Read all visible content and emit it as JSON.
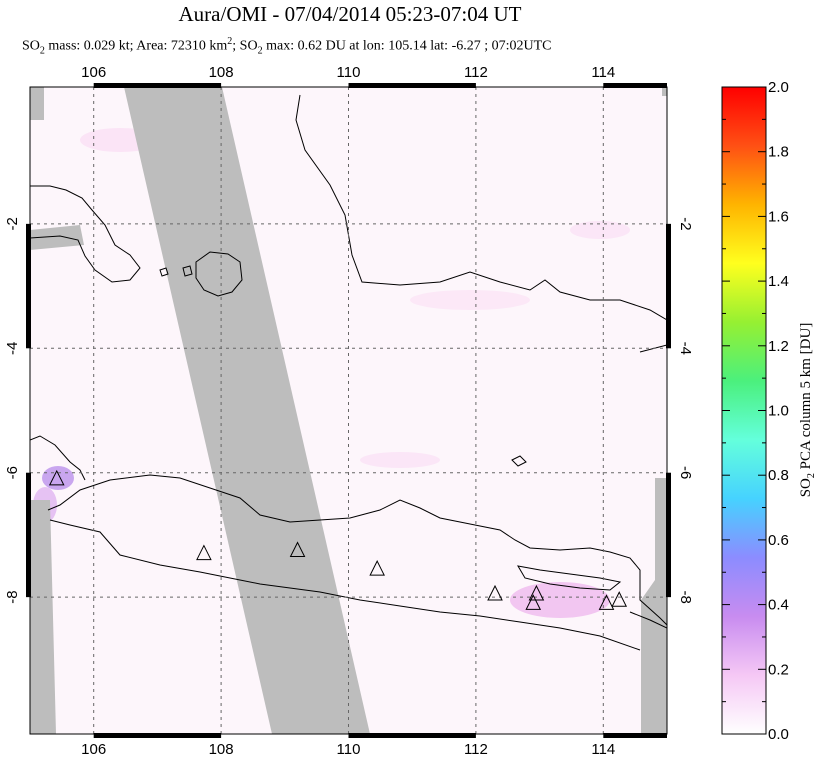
{
  "title": "Aura/OMI - 07/04/2014 05:23-07:04 UT",
  "subtitle": {
    "prefix": "SO",
    "prefix_sub": "2",
    "mass_text": " mass: 0.029 kt; Area: 72310 km",
    "area_sup": "2",
    "sep": "; SO",
    "sep_sub": "2",
    "max_text": " max: 0.62 DU at lon: 105.14 lat: -6.27 ; 07:02UTC"
  },
  "map": {
    "lon_range": [
      105,
      115
    ],
    "lat_range": [
      -10.2,
      0.2
    ],
    "lon_ticks": [
      "106",
      "108",
      "110",
      "112",
      "114"
    ],
    "lon_tick_values": [
      106,
      108,
      110,
      112,
      114
    ],
    "lat_ticks": [
      "-2",
      "-4",
      "-6",
      "-8"
    ],
    "lat_tick_values": [
      -2,
      -4,
      -6,
      -8
    ],
    "grid": "dashed",
    "no_data_color": "#bdbdbd",
    "volcanoes": [
      {
        "name": "volcano",
        "lon": 105.42,
        "lat": -6.1
      },
      {
        "name": "volcano",
        "lon": 107.73,
        "lat": -7.3
      },
      {
        "name": "volcano",
        "lon": 109.2,
        "lat": -7.25
      },
      {
        "name": "volcano",
        "lon": 110.45,
        "lat": -7.55
      },
      {
        "name": "volcano",
        "lon": 112.3,
        "lat": -7.95
      },
      {
        "name": "volcano",
        "lon": 112.95,
        "lat": -7.95
      },
      {
        "name": "volcano",
        "lon": 112.9,
        "lat": -8.1
      },
      {
        "name": "volcano",
        "lon": 114.05,
        "lat": -8.1
      },
      {
        "name": "volcano",
        "lon": 114.25,
        "lat": -8.05
      }
    ]
  },
  "colorbar": {
    "label": "SO2 PCA column 5 km [DU]",
    "label_prefix": "SO",
    "label_sub": "2",
    "label_rest": " PCA column 5 km [DU]",
    "min": 0.0,
    "max": 2.0,
    "ticks": [
      "0.0",
      "0.2",
      "0.4",
      "0.6",
      "0.8",
      "1.0",
      "1.2",
      "1.4",
      "1.6",
      "1.8",
      "2.0"
    ],
    "colors": [
      "#ffffff",
      "#f5c8f5",
      "#c88cf0",
      "#8c8cff",
      "#46d2ff",
      "#64ffdc",
      "#4bf07d",
      "#96f032",
      "#ffff1e",
      "#ffb400",
      "#ff5014",
      "#ff0000"
    ]
  }
}
